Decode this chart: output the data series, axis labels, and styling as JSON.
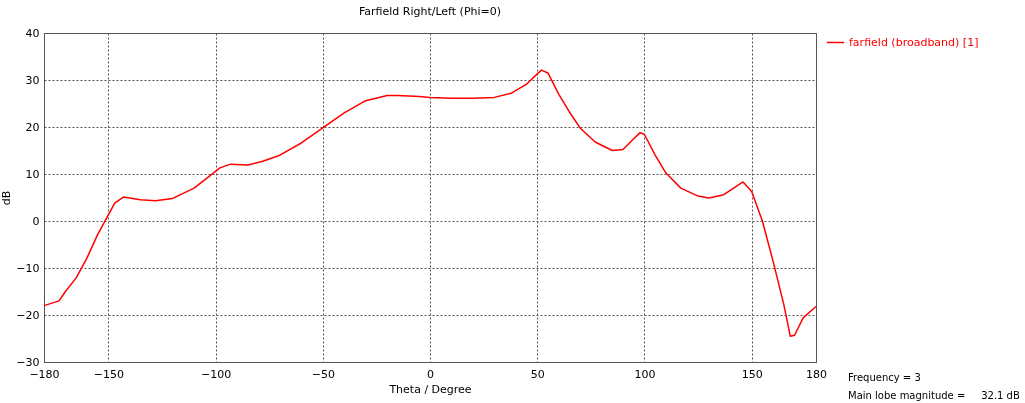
{
  "chart_data": {
    "type": "line",
    "title": "Farfield  Right/Left (Phi=0)",
    "xlabel": "Theta / Degree",
    "ylabel": "dB",
    "annotations": [
      "Frequency = 3",
      "Main lobe magnitude =     32.1 dB"
    ],
    "x": [
      -180,
      -173,
      -170,
      -165,
      -160,
      -155,
      -150,
      -147,
      -143,
      -135,
      -128,
      -120,
      -110,
      -103,
      -98,
      -93,
      -85,
      -78,
      -70,
      -60,
      -50,
      -40,
      -30,
      -20,
      -15,
      -5,
      0,
      10,
      20,
      30,
      38,
      45,
      50,
      52,
      55,
      60,
      65,
      70,
      77,
      85,
      90,
      95,
      98,
      100,
      105,
      110,
      117,
      125,
      130,
      137,
      143,
      146,
      150,
      155,
      160,
      165,
      168,
      170,
      174,
      180
    ],
    "series": [
      {
        "name": "farfield (broadband) [1]",
        "color": "#ff0000",
        "values": [
          -18.0,
          -17.0,
          -15.0,
          -12.1,
          -7.9,
          -2.9,
          1.3,
          3.8,
          5.1,
          4.5,
          4.3,
          4.8,
          7.0,
          9.5,
          11.3,
          12.1,
          11.9,
          12.7,
          14.0,
          16.6,
          19.8,
          23.0,
          25.6,
          26.7,
          26.7,
          26.5,
          26.3,
          26.1,
          26.1,
          26.3,
          27.2,
          29.1,
          31.3,
          32.1,
          31.5,
          27.0,
          23.2,
          19.8,
          16.8,
          15.0,
          15.2,
          17.5,
          18.8,
          18.4,
          14.0,
          10.2,
          7.0,
          5.3,
          4.9,
          5.6,
          7.4,
          8.3,
          6.3,
          0,
          -8.6,
          -17.8,
          -24.5,
          -24.3,
          -20.6,
          -18.2
        ]
      }
    ],
    "xlim": [
      -180,
      180
    ],
    "xticks": [
      -180,
      -150,
      -100,
      -50,
      0,
      50,
      100,
      150,
      180
    ],
    "ylim": [
      -30,
      40
    ],
    "yticks": [
      -30,
      -20,
      -10,
      0,
      10,
      20,
      30,
      40
    ],
    "grid": true,
    "legend": "top right",
    "line_style": "solid"
  }
}
